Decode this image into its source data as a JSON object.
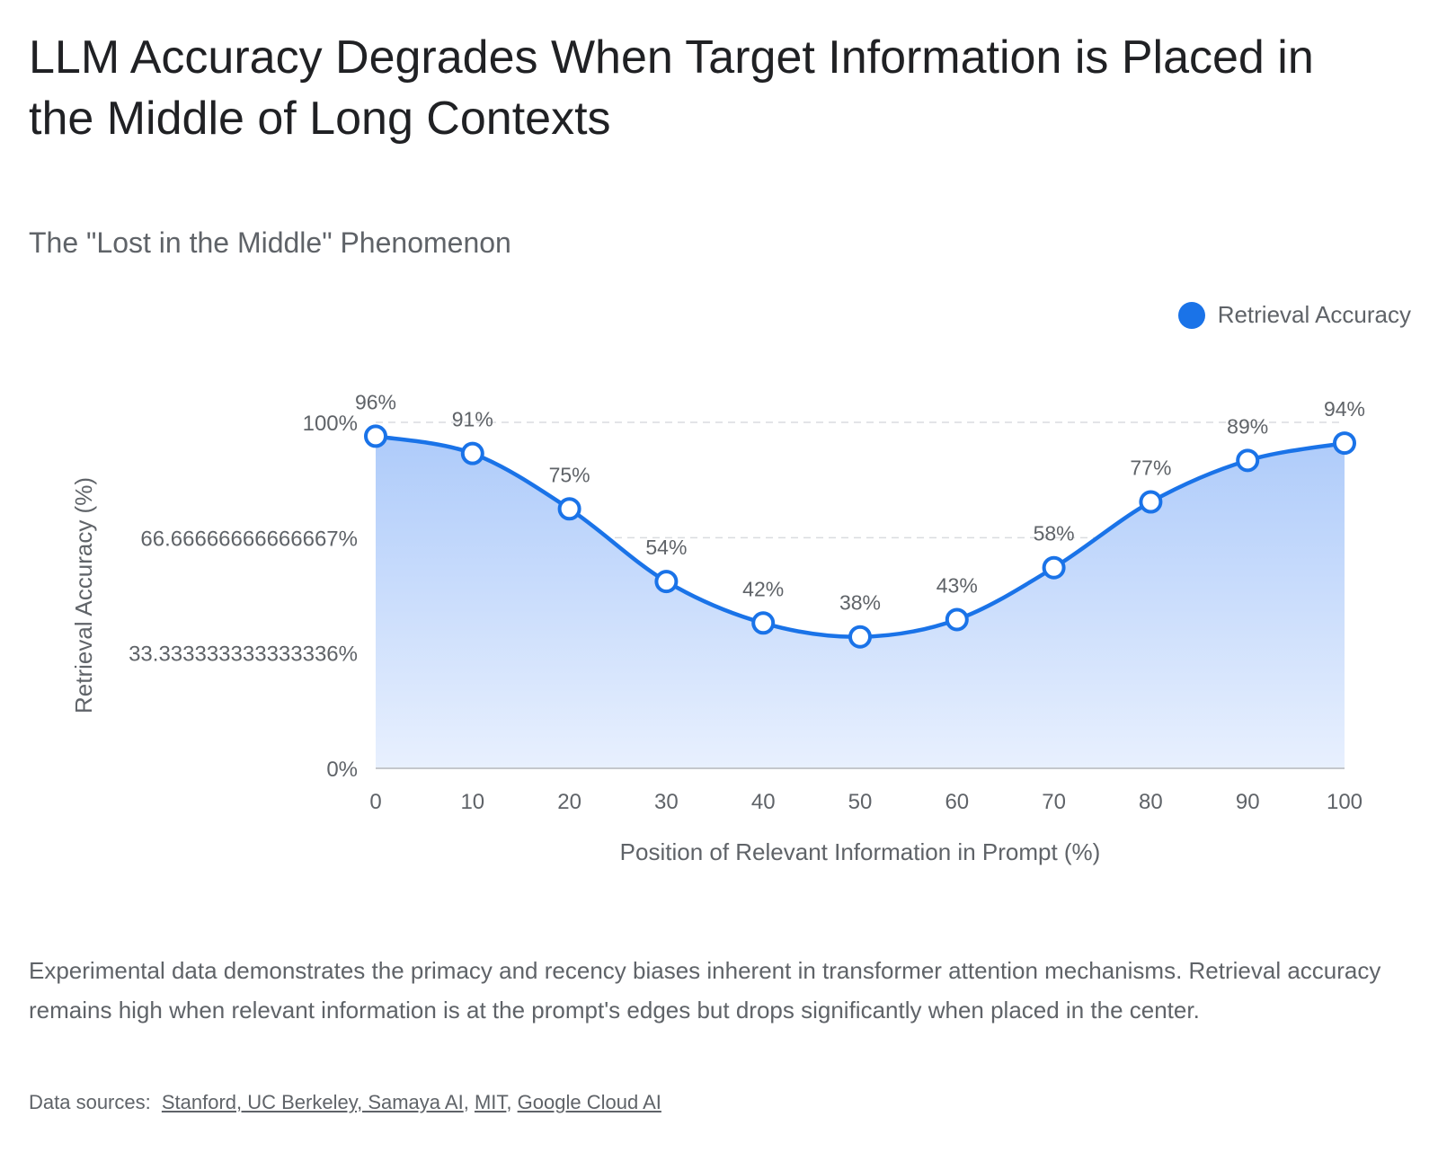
{
  "title": "LLM Accuracy Degrades When Target Information is Placed in the Middle of Long Contexts",
  "subtitle": "The \"Lost in the Middle\" Phenomenon",
  "legend": {
    "label": "Retrieval Accuracy",
    "color": "#1a73e8"
  },
  "description": "Experimental data demonstrates the primacy and recency biases inherent in transformer attention mechanisms. Retrieval accuracy remains high when relevant information is at the prompt's edges but drops significantly when placed in the center.",
  "sources": {
    "prefix": "Data sources:",
    "links": [
      {
        "label": "Stanford, UC Berkeley, Samaya AI"
      },
      {
        "label": "MIT"
      },
      {
        "label": "Google Cloud AI"
      }
    ],
    "separator": ", "
  },
  "chart_data": {
    "type": "area",
    "x": [
      0,
      10,
      20,
      30,
      40,
      50,
      60,
      70,
      80,
      90,
      100
    ],
    "x_tick_labels": [
      "0",
      "10",
      "20",
      "30",
      "40",
      "50",
      "60",
      "70",
      "80",
      "90",
      "100"
    ],
    "series": [
      {
        "name": "Retrieval Accuracy",
        "values": [
          96,
          91,
          75,
          54,
          42,
          38,
          43,
          58,
          77,
          89,
          94
        ],
        "data_labels": [
          "96%",
          "91%",
          "75%",
          "54%",
          "42%",
          "38%",
          "43%",
          "58%",
          "77%",
          "89%",
          "94%"
        ]
      }
    ],
    "xlabel": "Position of Relevant Information in Prompt (%)",
    "ylabel": "Retrieval Accuracy (%)",
    "xlim": [
      0,
      100
    ],
    "ylim": [
      0,
      100
    ],
    "y_ticks": [
      0,
      33.333333333333336,
      66.66666666666667,
      100
    ],
    "y_tick_labels": [
      "0%",
      "33.333333333333336%",
      "66.66666666666667%",
      "100%"
    ],
    "grid": true,
    "legend_position": "top-right",
    "colors": {
      "line": "#1a73e8",
      "fill_top": "#aecbfa",
      "fill_bottom": "#e8f0fe",
      "grid": "#dadce0"
    }
  }
}
